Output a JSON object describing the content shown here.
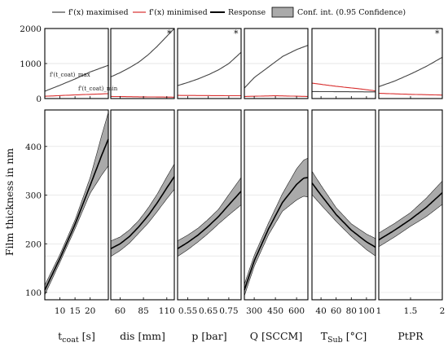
{
  "legend": [
    {
      "key": "max",
      "label": "f'(x) maximised",
      "color": "#444444"
    },
    {
      "key": "min",
      "label": "f'(x) minimised",
      "color": "#d93030"
    },
    {
      "key": "resp",
      "label": "Response",
      "color": "#000000"
    },
    {
      "key": "ci",
      "label": "Conf. int. (0.95 Confidence)",
      "color": "#aaaaaa"
    }
  ],
  "ylabel": "Film thickness in nm",
  "chart_data": {
    "type": "line",
    "top_row": {
      "ylim": [
        0,
        2000
      ],
      "yticks": [
        0,
        1000,
        2000
      ],
      "gridlines": [
        1000
      ],
      "annotations": {
        "max": "f'(t_coat)_max",
        "min": "f'(t_coat)_min"
      }
    },
    "bottom_row": {
      "ylim": [
        85,
        475
      ],
      "yticks": [
        100,
        200,
        300,
        400
      ],
      "gridlines": [
        100,
        175,
        200,
        300,
        400
      ]
    },
    "panels": [
      {
        "xlabel_main": "t",
        "xlabel_sub": "coat",
        "xlabel_rest": " [s]",
        "xlim": [
          5,
          26
        ],
        "xticks": [
          10,
          15,
          20
        ],
        "xtick_labels": [
          "10",
          "15",
          "20"
        ],
        "star": false,
        "deriv_max": [
          [
            5,
            210
          ],
          [
            10,
            380
          ],
          [
            15,
            560
          ],
          [
            20,
            760
          ],
          [
            26,
            950
          ]
        ],
        "deriv_min": [
          [
            5,
            65
          ],
          [
            10,
            85
          ],
          [
            15,
            105
          ],
          [
            20,
            120
          ],
          [
            26,
            140
          ]
        ],
        "response": [
          [
            5,
            105
          ],
          [
            10,
            170
          ],
          [
            15,
            240
          ],
          [
            20,
            320
          ],
          [
            24,
            385
          ],
          [
            26,
            415
          ]
        ],
        "ci_width": [
          [
            5,
            10
          ],
          [
            10,
            8
          ],
          [
            15,
            9
          ],
          [
            20,
            16
          ],
          [
            26,
            55
          ]
        ]
      },
      {
        "xlabel_main": "dis [mm]",
        "xlabel_sub": "",
        "xlabel_rest": "",
        "xlim": [
          50,
          118
        ],
        "xticks": [
          60,
          85,
          110
        ],
        "xtick_labels": [
          "60",
          "85",
          "110"
        ],
        "star": true,
        "deriv_max": [
          [
            50,
            620
          ],
          [
            60,
            740
          ],
          [
            70,
            880
          ],
          [
            80,
            1040
          ],
          [
            90,
            1250
          ],
          [
            100,
            1500
          ],
          [
            110,
            1780
          ],
          [
            118,
            2000
          ]
        ],
        "deriv_min": [
          [
            50,
            60
          ],
          [
            80,
            50
          ],
          [
            118,
            40
          ]
        ],
        "response": [
          [
            50,
            190
          ],
          [
            60,
            200
          ],
          [
            70,
            215
          ],
          [
            80,
            235
          ],
          [
            90,
            258
          ],
          [
            100,
            285
          ],
          [
            110,
            315
          ],
          [
            118,
            338
          ]
        ],
        "ci_width": [
          [
            50,
            16
          ],
          [
            60,
            14
          ],
          [
            80,
            13
          ],
          [
            100,
            18
          ],
          [
            118,
            26
          ]
        ]
      },
      {
        "xlabel_main": "p [bar]",
        "xlabel_sub": "",
        "xlabel_rest": "",
        "xlim": [
          0.5,
          0.81
        ],
        "xticks": [
          0.55,
          0.65,
          0.75
        ],
        "xtick_labels": [
          "0.55",
          "0.65",
          "0.75"
        ],
        "star": true,
        "deriv_max": [
          [
            0.5,
            370
          ],
          [
            0.55,
            460
          ],
          [
            0.6,
            560
          ],
          [
            0.65,
            680
          ],
          [
            0.7,
            820
          ],
          [
            0.75,
            1000
          ],
          [
            0.81,
            1320
          ]
        ],
        "deriv_min": [
          [
            0.5,
            90
          ],
          [
            0.81,
            80
          ]
        ],
        "response": [
          [
            0.5,
            190
          ],
          [
            0.55,
            203
          ],
          [
            0.6,
            218
          ],
          [
            0.65,
            236
          ],
          [
            0.7,
            256
          ],
          [
            0.75,
            280
          ],
          [
            0.81,
            308
          ]
        ],
        "ci_width": [
          [
            0.5,
            16
          ],
          [
            0.6,
            14
          ],
          [
            0.7,
            15
          ],
          [
            0.81,
            28
          ]
        ]
      },
      {
        "xlabel_main": "Q [SCCM]",
        "xlabel_sub": "",
        "xlabel_rest": "",
        "xlim": [
          230,
          680
        ],
        "xticks": [
          300,
          450,
          600
        ],
        "xtick_labels": [
          "300",
          "450",
          "600"
        ],
        "star": false,
        "deriv_max": [
          [
            230,
            300
          ],
          [
            300,
            600
          ],
          [
            400,
            900
          ],
          [
            500,
            1200
          ],
          [
            600,
            1400
          ],
          [
            680,
            1520
          ]
        ],
        "deriv_min": [
          [
            230,
            60
          ],
          [
            450,
            80
          ],
          [
            680,
            60
          ]
        ],
        "response": [
          [
            230,
            105
          ],
          [
            300,
            165
          ],
          [
            400,
            230
          ],
          [
            500,
            285
          ],
          [
            600,
            322
          ],
          [
            650,
            335
          ],
          [
            680,
            336
          ]
        ],
        "ci_width": [
          [
            230,
            12
          ],
          [
            300,
            11
          ],
          [
            400,
            12
          ],
          [
            500,
            18
          ],
          [
            600,
            32
          ],
          [
            680,
            40
          ]
        ]
      },
      {
        "xlabel_main": "T",
        "xlabel_sub": "Sub",
        "xlabel_rest": " [°C]",
        "xlim": [
          28,
          112
        ],
        "xticks": [
          40,
          60,
          80,
          100
        ],
        "xtick_labels": [
          "40",
          "60",
          "80",
          "100"
        ],
        "star": false,
        "deriv_max": [
          [
            28,
            200
          ],
          [
            112,
            190
          ]
        ],
        "deriv_min": [
          [
            28,
            440
          ],
          [
            60,
            350
          ],
          [
            90,
            280
          ],
          [
            112,
            220
          ]
        ],
        "response": [
          [
            28,
            325
          ],
          [
            40,
            300
          ],
          [
            60,
            260
          ],
          [
            80,
            228
          ],
          [
            100,
            204
          ],
          [
            112,
            193
          ]
        ],
        "ci_width": [
          [
            28,
            24
          ],
          [
            40,
            20
          ],
          [
            60,
            14
          ],
          [
            80,
            13
          ],
          [
            100,
            16
          ],
          [
            112,
            18
          ]
        ]
      },
      {
        "xlabel_main": "PtPR",
        "xlabel_sub": "",
        "xlabel_rest": "",
        "xlim": [
          1,
          2
        ],
        "xticks": [
          1,
          1.5,
          2
        ],
        "xtick_labels": [
          "1",
          "1.5",
          "2"
        ],
        "star": true,
        "deriv_max": [
          [
            1,
            340
          ],
          [
            1.25,
            500
          ],
          [
            1.5,
            700
          ],
          [
            1.75,
            920
          ],
          [
            2,
            1180
          ]
        ],
        "deriv_min": [
          [
            1,
            150
          ],
          [
            1.5,
            120
          ],
          [
            2,
            100
          ]
        ],
        "response": [
          [
            1,
            208
          ],
          [
            1.25,
            228
          ],
          [
            1.5,
            250
          ],
          [
            1.75,
            275
          ],
          [
            2,
            305
          ]
        ],
        "ci_width": [
          [
            1,
            14
          ],
          [
            1.5,
            14
          ],
          [
            2,
            24
          ]
        ]
      }
    ]
  }
}
